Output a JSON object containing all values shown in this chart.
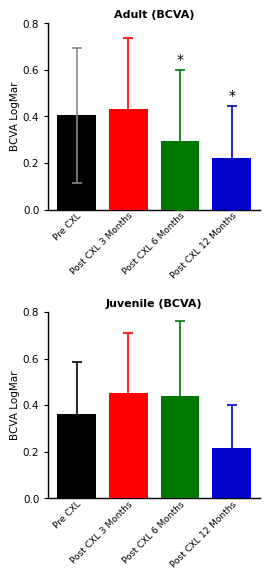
{
  "adult": {
    "title": "Adult (BCVA)",
    "categories": [
      "Pre CXL",
      "Post CXL 3 Months",
      "Post CXL 6 Months",
      "Post CXL 12 Months"
    ],
    "values": [
      0.405,
      0.43,
      0.295,
      0.22
    ],
    "errors_upper": [
      0.29,
      0.305,
      0.305,
      0.225
    ],
    "errors_lower": [
      0.29,
      0.305,
      0.295,
      0.22
    ],
    "bar_colors": [
      "#000000",
      "#ff0000",
      "#007700",
      "#0000cc"
    ],
    "errorbar_colors": [
      "#888888",
      "#ff0000",
      "#007700",
      "#0000bb"
    ],
    "ylabel": "BCVA LogMar",
    "ylim": [
      0,
      0.8
    ],
    "yticks": [
      0.0,
      0.2,
      0.4,
      0.6,
      0.8
    ],
    "significant": [
      false,
      false,
      true,
      true
    ]
  },
  "juvenile": {
    "title": "Juvenile (BCVA)",
    "categories": [
      "Pre CXL",
      "Post CXL 3 Months",
      "Post CXL 6 Months",
      "Post CXL 12 Months"
    ],
    "values": [
      0.36,
      0.45,
      0.44,
      0.215
    ],
    "errors_upper": [
      0.225,
      0.26,
      0.32,
      0.185
    ],
    "errors_lower": [
      0.225,
      0.26,
      0.32,
      0.185
    ],
    "bar_colors": [
      "#000000",
      "#ff0000",
      "#007700",
      "#0000cc"
    ],
    "errorbar_colors": [
      "#000000",
      "#ff0000",
      "#007700",
      "#0000bb"
    ],
    "ylabel": "BCVA LogMar",
    "ylim": [
      0,
      0.8
    ],
    "yticks": [
      0.0,
      0.2,
      0.4,
      0.6,
      0.8
    ],
    "significant": [
      false,
      false,
      false,
      false
    ]
  }
}
